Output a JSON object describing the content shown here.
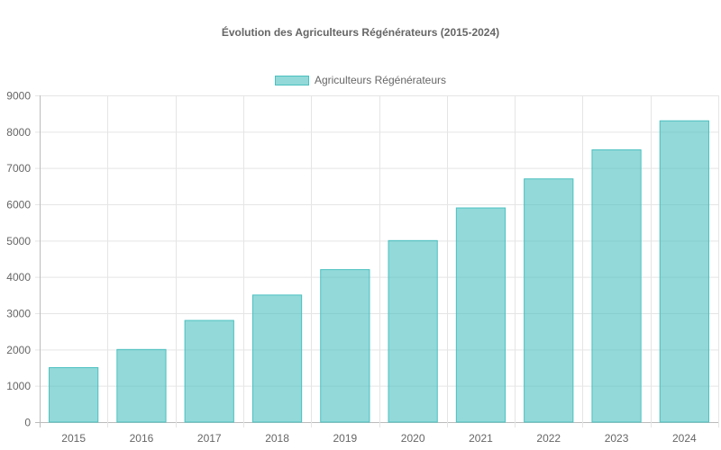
{
  "chart_data": {
    "type": "bar",
    "title": "Évolution des Agriculteurs Régénérateurs (2015-2024)",
    "categories": [
      "2015",
      "2016",
      "2017",
      "2018",
      "2019",
      "2020",
      "2021",
      "2022",
      "2023",
      "2024"
    ],
    "series": [
      {
        "name": "Agriculteurs Régénérateurs",
        "values": [
          1500,
          2000,
          2800,
          3500,
          4200,
          5000,
          5900,
          6700,
          7500,
          8300
        ]
      }
    ],
    "ylim": [
      0,
      9000
    ],
    "yticks": [
      0,
      1000,
      2000,
      3000,
      4000,
      5000,
      6000,
      7000,
      8000,
      9000
    ],
    "grid": true,
    "legend": "top",
    "colors": {
      "fill": "rgba(75,192,192,0.6)",
      "border": "#4bc0c0"
    }
  }
}
